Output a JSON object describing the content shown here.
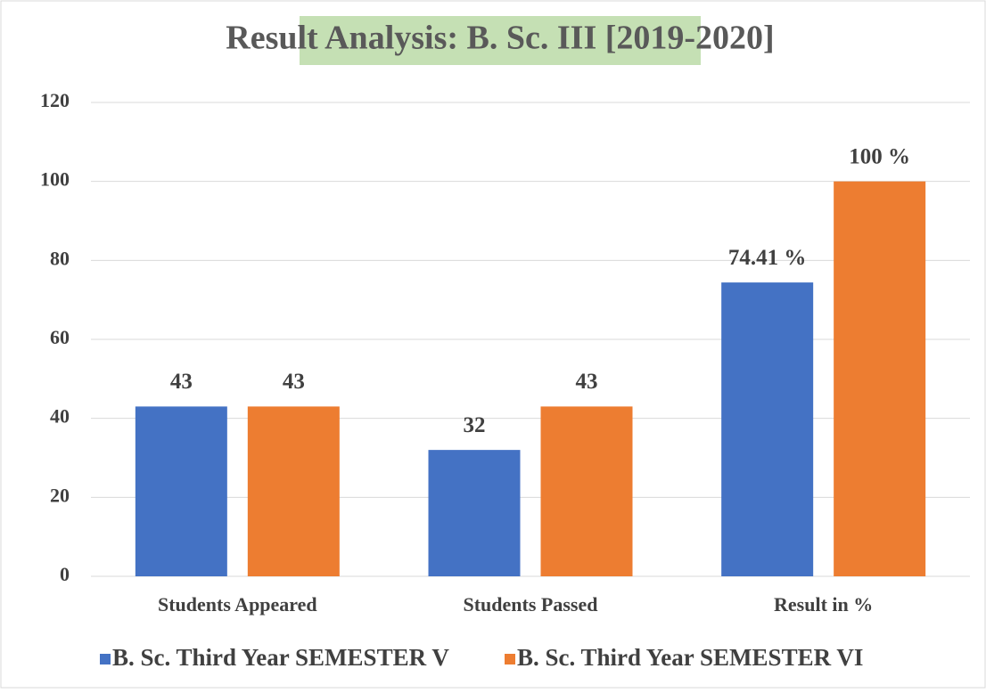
{
  "chart_data": {
    "type": "bar",
    "title": "Result Analysis: B. Sc. III [2019-2020]",
    "categories": [
      "Students Appeared",
      "Students Passed",
      "Result in %"
    ],
    "series": [
      {
        "name": "B. Sc. Third Year SEMESTER V",
        "color": "#4472c4",
        "values": [
          43,
          32,
          74.41
        ],
        "value_labels": [
          "43",
          "32",
          "74.41 %"
        ]
      },
      {
        "name": "B. Sc. Third Year SEMESTER VI",
        "color": "#ed7d31",
        "values": [
          43,
          43,
          100
        ],
        "value_labels": [
          "43",
          "43",
          "100 %"
        ]
      }
    ],
    "ylim": [
      0,
      120
    ],
    "yticks": [
      0,
      20,
      40,
      60,
      80,
      100,
      120
    ],
    "grid": true,
    "legend": "bottom"
  }
}
